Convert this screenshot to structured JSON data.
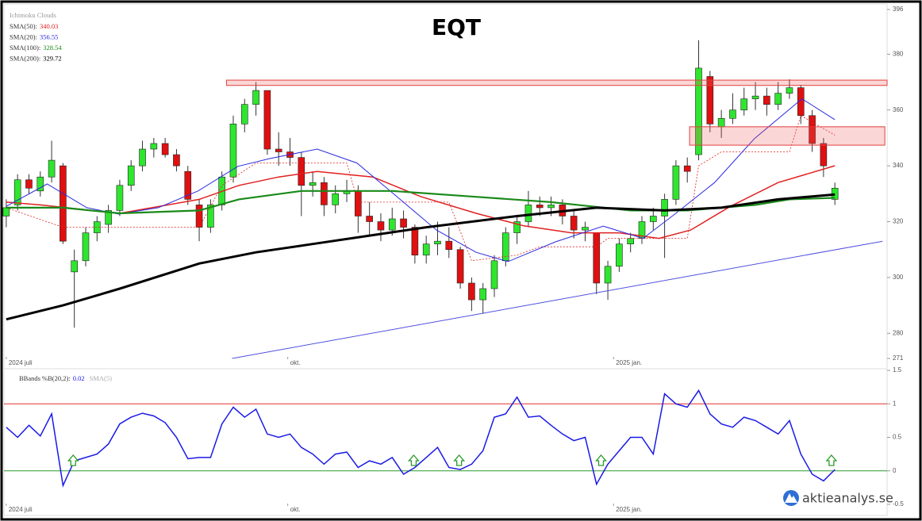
{
  "chart_data": [
    {
      "type": "candlestick",
      "title": "EQT",
      "indicator_label": "Ichimoku Clouds",
      "up_color": "#2ee62e",
      "down_color": "#e01010",
      "xlim": [
        -0.2,
        77.6
      ],
      "xticks": [
        {
          "value": 0,
          "label": "2024 juli"
        },
        {
          "value": 24.8,
          "label": "okt."
        },
        {
          "value": 53.5,
          "label": "2025 jan."
        }
      ],
      "ylim": [
        271,
        396
      ],
      "yticks": [
        271,
        280,
        300,
        320,
        340,
        360,
        380,
        396
      ],
      "open": [
        322,
        326,
        335,
        331,
        336,
        340,
        302,
        306,
        316,
        319,
        324,
        333,
        340,
        346,
        348,
        344,
        338,
        326,
        318,
        326,
        336,
        355,
        362,
        367,
        346,
        345,
        343,
        333,
        334,
        326,
        330,
        331,
        322,
        320,
        317,
        321,
        318,
        308,
        312,
        313,
        310,
        298,
        292,
        296,
        306,
        316,
        320,
        326,
        325,
        326,
        322,
        317,
        316,
        298,
        304,
        312,
        314,
        320,
        322,
        328,
        340,
        344,
        372,
        354,
        357,
        360,
        364,
        365,
        362,
        366,
        368,
        358,
        348,
        328
      ],
      "high": [
        328,
        337,
        337,
        338,
        349,
        341,
        310,
        318,
        322,
        326,
        335,
        342,
        349,
        350,
        350,
        346,
        340,
        328,
        328,
        338,
        358,
        364,
        370,
        367,
        352,
        350,
        345,
        338,
        336,
        333,
        335,
        333,
        327,
        323,
        325,
        324,
        319,
        315,
        320,
        318,
        311,
        300,
        298,
        308,
        318,
        322,
        331,
        329,
        329,
        328,
        324,
        320,
        316,
        306,
        314,
        316,
        322,
        325,
        330,
        342,
        343,
        385,
        374,
        360,
        366,
        368,
        370,
        368,
        370,
        371,
        369,
        360,
        350,
        334
      ],
      "low": [
        318,
        324,
        330,
        329,
        334,
        312,
        282,
        304,
        313,
        316,
        322,
        331,
        338,
        343,
        343,
        338,
        326,
        313,
        316,
        324,
        334,
        352,
        358,
        344,
        340,
        340,
        322,
        329,
        322,
        323,
        327,
        316,
        315,
        313,
        315,
        314,
        305,
        305,
        308,
        307,
        296,
        288,
        287,
        293,
        304,
        312,
        318,
        322,
        322,
        319,
        314,
        313,
        294,
        292,
        302,
        309,
        312,
        317,
        307,
        326,
        334,
        342,
        352,
        350,
        355,
        358,
        360,
        358,
        360,
        364,
        355,
        345,
        336,
        326
      ],
      "close": [
        325,
        335,
        332,
        336,
        342,
        313,
        306,
        316,
        320,
        324,
        333,
        340,
        346,
        348,
        344,
        340,
        328,
        318,
        326,
        336,
        355,
        362,
        367,
        346,
        345,
        343,
        333,
        334,
        326,
        330,
        331,
        322,
        320,
        317,
        321,
        318,
        308,
        312,
        313,
        310,
        298,
        292,
        296,
        306,
        316,
        320,
        326,
        325,
        326,
        322,
        317,
        318,
        298,
        304,
        312,
        314,
        320,
        322,
        328,
        340,
        338,
        375,
        355,
        357,
        360,
        364,
        365,
        362,
        366,
        368,
        358,
        348,
        340,
        332
      ],
      "series": [
        {
          "name": "SMA(50):",
          "color": "#e02020",
          "width": 1.5,
          "x": [
            0,
            3,
            10,
            17,
            20.5,
            24,
            27.4,
            32.3,
            36.5,
            41.4,
            45.6,
            49.8,
            54,
            57.5,
            60.3,
            63.8,
            68,
            73
          ],
          "values": [
            327,
            326,
            323,
            328,
            333,
            336,
            338,
            336,
            329,
            323,
            318.5,
            316,
            316,
            314,
            317,
            325.5,
            334,
            340.03
          ]
        },
        {
          "name": "SMA(20):",
          "color": "#2a2ae0",
          "width": 1,
          "x": [
            0,
            3.6,
            7.1,
            9.9,
            13.4,
            16.9,
            20.4,
            23.2,
            27.4,
            30.9,
            34.4,
            37.9,
            41.4,
            44.2,
            48.4,
            52.6,
            56.1,
            58.9,
            62.4,
            65.9,
            70.1,
            73
          ],
          "values": [
            325.5,
            333.5,
            325,
            322.7,
            325,
            331,
            339.8,
            342.6,
            346,
            341,
            329,
            317,
            309,
            305.7,
            312.8,
            318.4,
            314,
            322.7,
            334,
            349.7,
            364,
            356.55
          ]
        },
        {
          "name": "SMA(100):",
          "color": "#1a8a1a",
          "width": 2.2,
          "x": [
            0,
            5,
            10,
            17,
            20.5,
            26,
            34,
            41,
            48,
            55,
            60,
            66,
            69,
            73
          ],
          "values": [
            325,
            325,
            323,
            324,
            328,
            331,
            331,
            329,
            327,
            324,
            324,
            326,
            328,
            328.54
          ]
        },
        {
          "name": "SMA(200):",
          "color": "#000000",
          "width": 3,
          "x": [
            0,
            5,
            10,
            17,
            22,
            27,
            32,
            37,
            45,
            52,
            58,
            63,
            68,
            73
          ],
          "values": [
            285,
            290,
            296,
            305,
            309,
            312,
            315,
            318,
            322,
            325,
            324,
            325,
            328,
            329.72
          ]
        }
      ],
      "ichimoku": {
        "color": "#e02020",
        "x": [
          0,
          5,
          17,
          19,
          22,
          30,
          31,
          39,
          41,
          45,
          47,
          52,
          53,
          60,
          61,
          63,
          69,
          70,
          73
        ],
        "values": [
          325,
          318,
          318,
          333,
          341,
          341,
          327,
          327,
          306,
          308,
          311,
          311,
          314,
          314,
          340,
          345,
          345,
          358,
          351
        ]
      },
      "zones": [
        {
          "x": [
            19.4,
            77.6
          ],
          "y": [
            368.8,
            370.7
          ]
        },
        {
          "x": [
            60.2,
            77.4
          ],
          "y": [
            347.4,
            354
          ]
        }
      ],
      "trendline": {
        "color": "#5050e0",
        "x": [
          19.9,
          77.2
        ],
        "y": [
          271,
          313
        ]
      }
    },
    {
      "type": "line",
      "xlim": [
        -0.2,
        77.6
      ],
      "xticks": [
        {
          "value": 0,
          "label": "2024 juli"
        },
        {
          "value": 24.8,
          "label": "okt."
        },
        {
          "value": 53.5,
          "label": "2025 jan."
        }
      ],
      "ylim": [
        -0.5,
        1.5
      ],
      "yticks": [
        -0.5,
        0,
        0.5,
        1,
        1.5
      ],
      "series": [
        {
          "name": "BBands %B(20,2):",
          "color": "#1a1ae6",
          "values": [
            0.65,
            0.5,
            0.68,
            0.52,
            0.85,
            -0.22,
            0.15,
            0.2,
            0.25,
            0.4,
            0.7,
            0.8,
            0.86,
            0.82,
            0.72,
            0.5,
            0.18,
            0.2,
            0.2,
            0.7,
            0.95,
            0.8,
            0.92,
            0.55,
            0.5,
            0.55,
            0.35,
            0.25,
            0.1,
            0.25,
            0.28,
            0.05,
            0.15,
            0.1,
            0.2,
            -0.05,
            0.05,
            0.2,
            0.35,
            0.05,
            0.02,
            0.1,
            0.3,
            0.8,
            0.85,
            1.1,
            0.8,
            0.82,
            0.68,
            0.55,
            0.45,
            0.5,
            -0.2,
            0.1,
            0.3,
            0.5,
            0.5,
            0.25,
            1.15,
            1.0,
            0.95,
            1.2,
            0.85,
            0.7,
            0.65,
            0.8,
            0.75,
            0.65,
            0.55,
            0.75,
            0.25,
            -0.05,
            -0.15,
            0.02
          ]
        }
      ],
      "overlay_label": "SMA(5)",
      "hlines": [
        {
          "value": 1,
          "color": "#e03030"
        },
        {
          "value": 0,
          "color": "#2a9a2a"
        }
      ],
      "signals": [
        5.9,
        35.9,
        39.9,
        52.4,
        72.7
      ]
    }
  ],
  "watermark": "aktieanalys.se"
}
